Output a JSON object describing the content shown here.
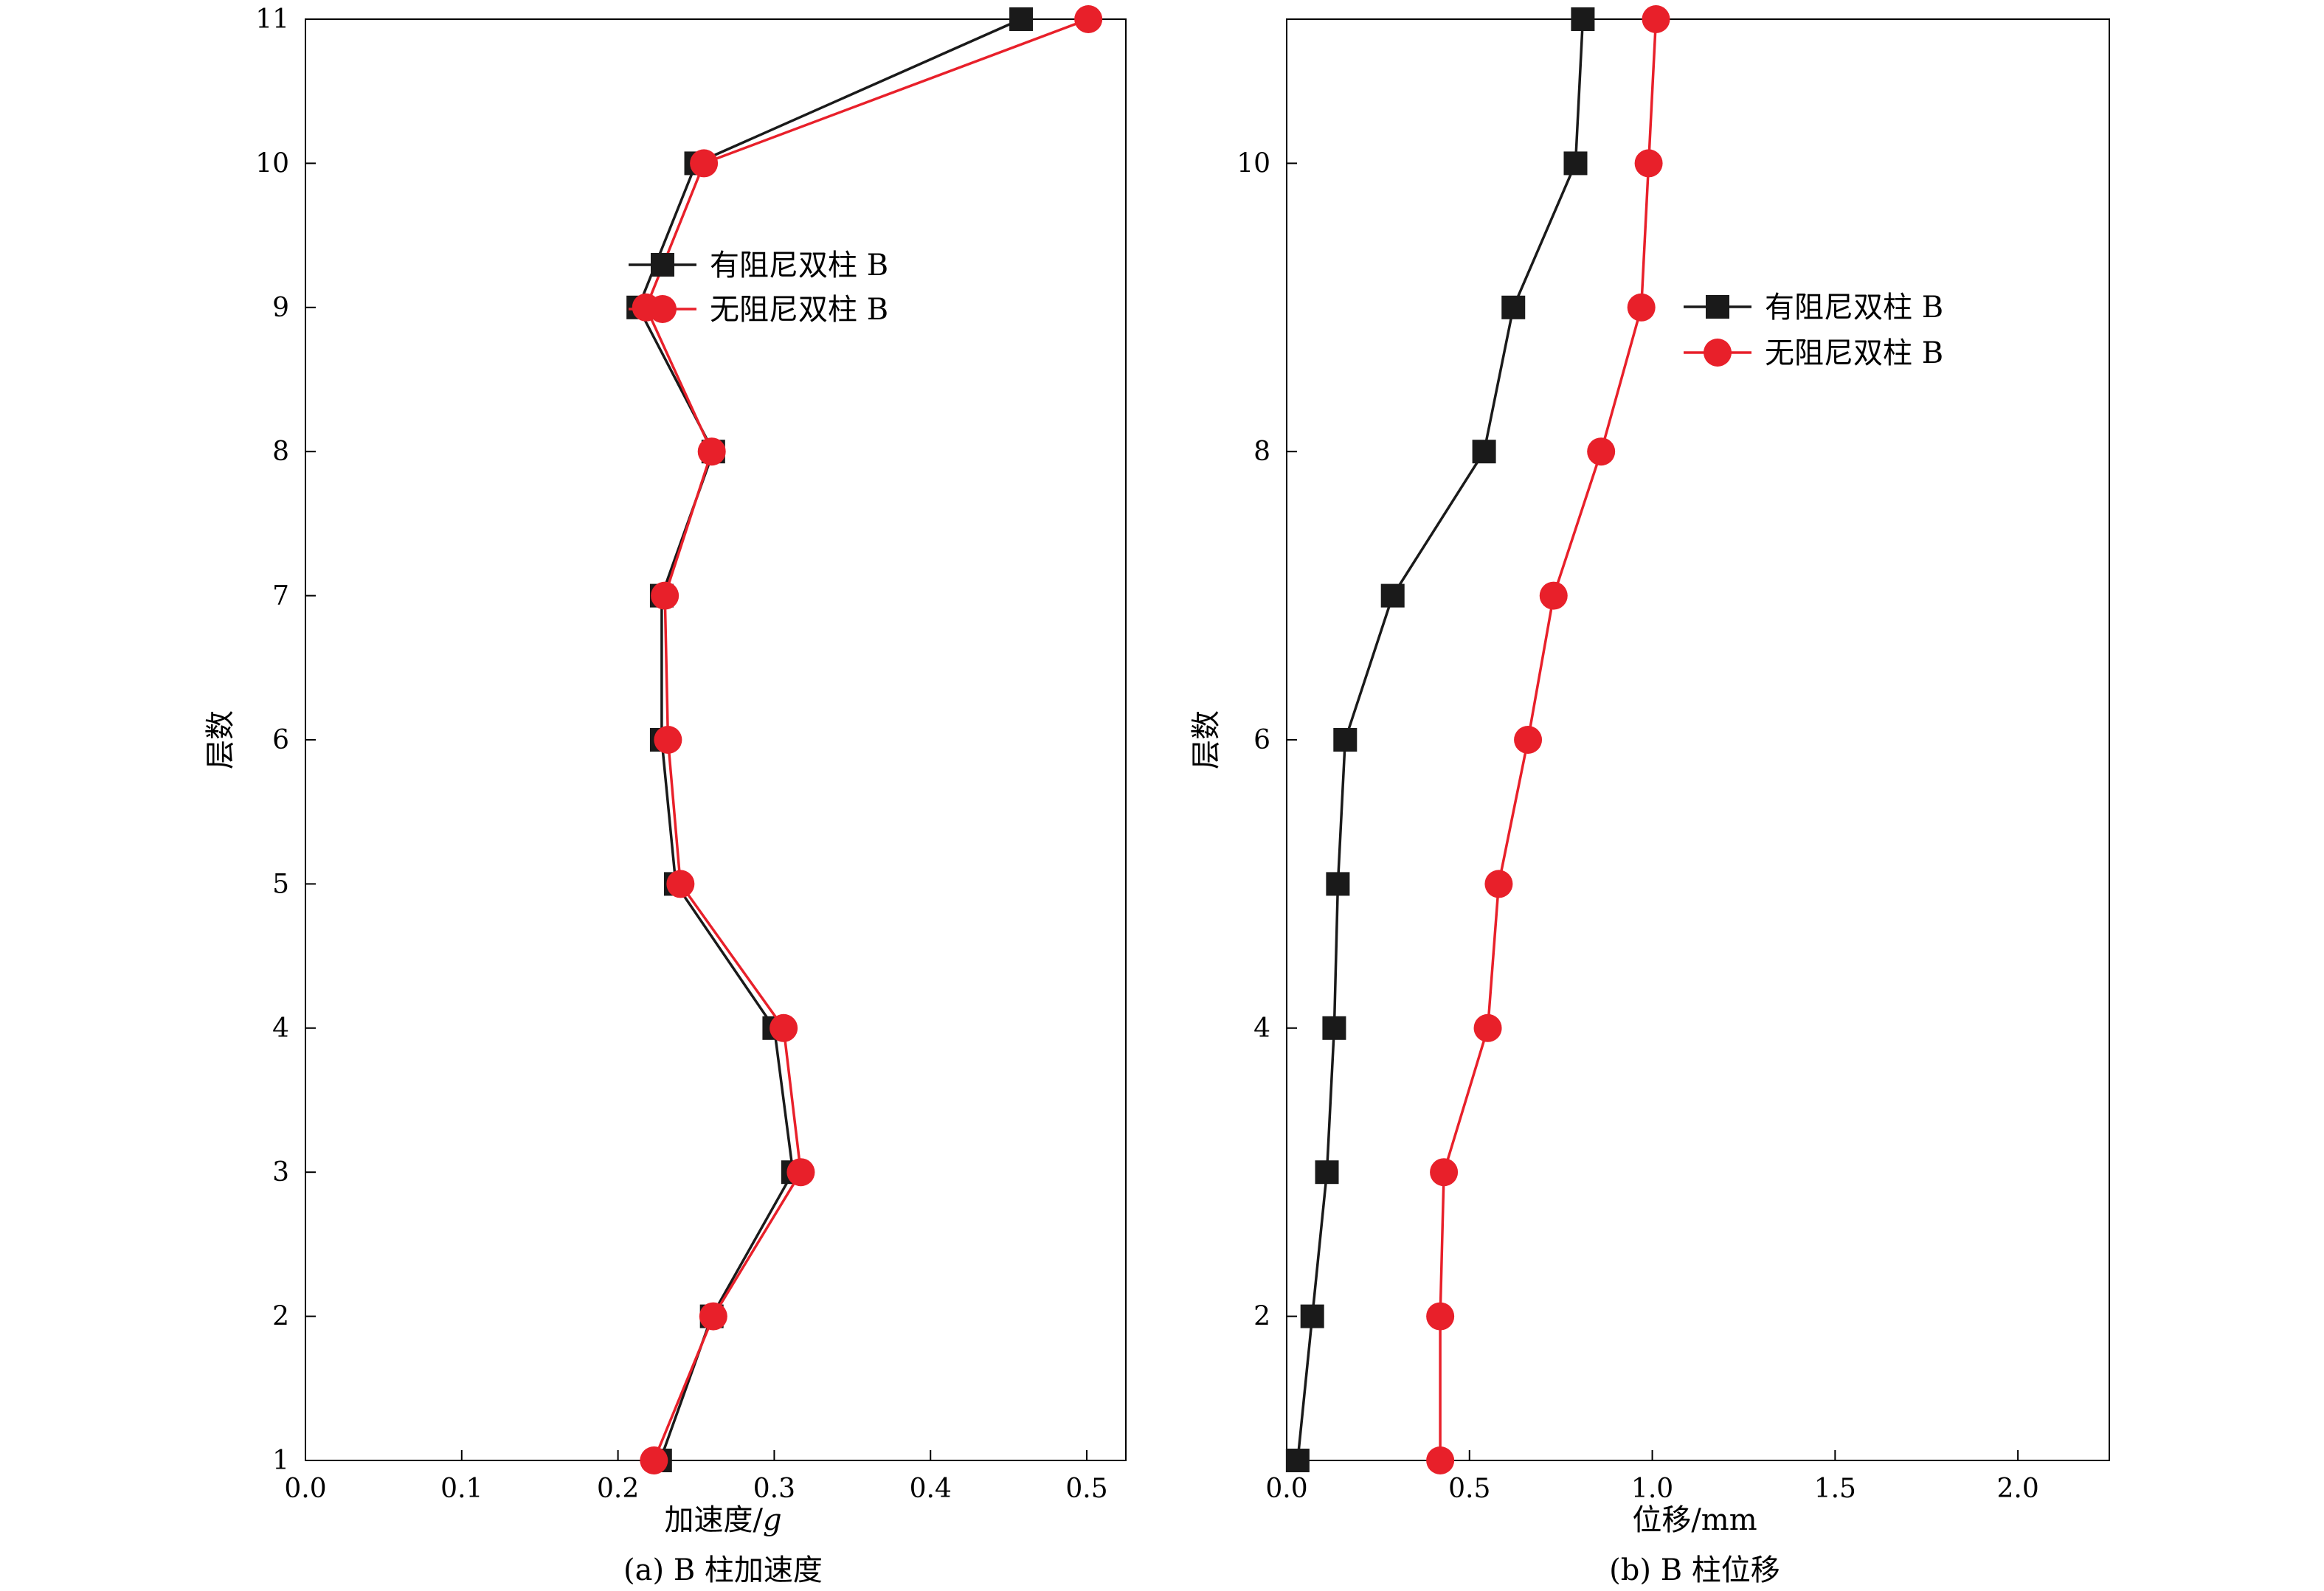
{
  "chart_data": [
    {
      "type": "line",
      "caption": "(a) B 柱加速度",
      "xlabel": "加速度/",
      "xlabel_unit": "g",
      "ylabel": "层数",
      "xlim": [
        0,
        0.525
      ],
      "ylim": [
        1,
        11
      ],
      "xticks": [
        0.0,
        0.1,
        0.2,
        0.3,
        0.4,
        0.5
      ],
      "xtick_labels": [
        "0.0",
        "0.1",
        "0.2",
        "0.3",
        "0.4",
        "0.5"
      ],
      "yticks": [
        1,
        2,
        3,
        4,
        5,
        6,
        7,
        8,
        9,
        10,
        11
      ],
      "ytick_labels": [
        "1",
        "2",
        "3",
        "4",
        "5",
        "6",
        "7",
        "8",
        "9",
        "10",
        "11"
      ],
      "grid": false,
      "legend_position": "upper-center",
      "y": [
        1,
        2,
        3,
        4,
        5,
        6,
        7,
        8,
        9,
        10,
        11
      ],
      "series": [
        {
          "name": "有阻尼双柱 B",
          "color": "#1a1a1a",
          "marker": "square",
          "x": [
            0.227,
            0.26,
            0.312,
            0.3,
            0.237,
            0.228,
            0.228,
            0.261,
            0.213,
            0.25,
            0.458
          ]
        },
        {
          "name": "无阻尼双柱 B",
          "color": "#e8202a",
          "marker": "circle",
          "x": [
            0.223,
            0.261,
            0.317,
            0.306,
            0.24,
            0.232,
            0.23,
            0.26,
            0.218,
            0.255,
            0.501
          ]
        }
      ]
    },
    {
      "type": "line",
      "caption": "(b) B 柱位移",
      "xlabel": "位移/mm",
      "ylabel": "层数",
      "xlim": [
        0,
        2.25
      ],
      "ylim": [
        1,
        11
      ],
      "xticks": [
        0.0,
        0.5,
        1.0,
        1.5,
        2.0
      ],
      "xtick_labels": [
        "0.0",
        "0.5",
        "1.0",
        "1.5",
        "2.0"
      ],
      "yticks": [
        2,
        4,
        6,
        8,
        10
      ],
      "ytick_labels": [
        "2",
        "4",
        "6",
        "8",
        "10"
      ],
      "grid": false,
      "legend_position": "upper-right",
      "y": [
        1,
        2,
        3,
        4,
        5,
        6,
        7,
        8,
        9,
        10,
        11
      ],
      "series": [
        {
          "name": "有阻尼双柱 B",
          "color": "#1a1a1a",
          "marker": "square",
          "x": [
            0.03,
            0.07,
            0.11,
            0.13,
            0.14,
            0.16,
            0.29,
            0.54,
            0.62,
            0.79,
            0.81
          ]
        },
        {
          "name": "无阻尼双柱 B",
          "color": "#e8202a",
          "marker": "circle",
          "x": [
            0.42,
            0.42,
            0.43,
            0.55,
            0.58,
            0.66,
            0.73,
            0.86,
            0.97,
            0.99,
            1.01
          ]
        }
      ]
    }
  ]
}
